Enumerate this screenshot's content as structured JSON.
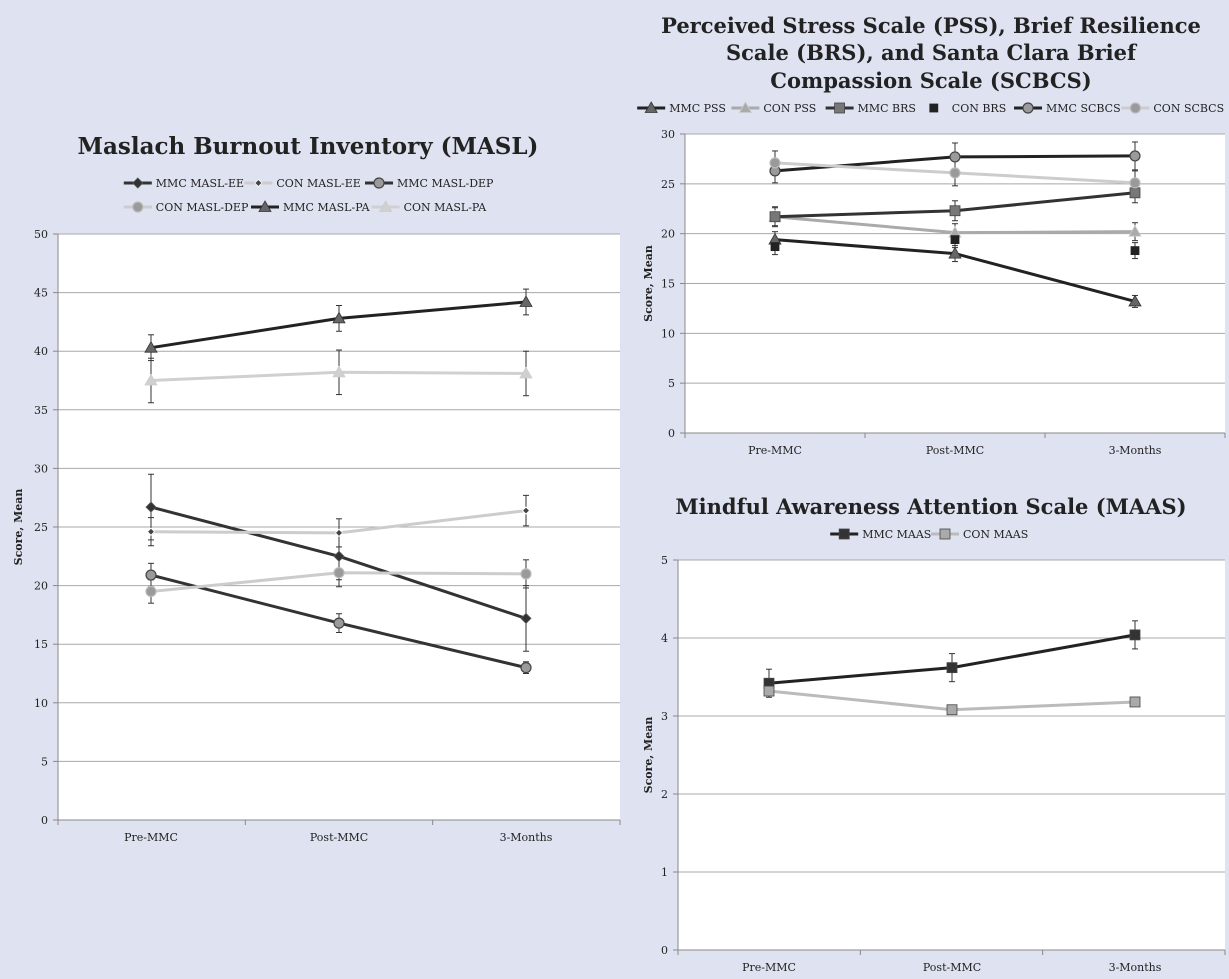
{
  "chart_data": [
    {
      "type": "line",
      "title": "Maslach Burnout Inventory (MASL)",
      "ylabel": "Score, Mean",
      "xlabel": "",
      "categories": [
        "Pre-MMC",
        "Post-MMC",
        "3-Months"
      ],
      "ylim": [
        0,
        50
      ],
      "yticks": [
        0,
        5,
        10,
        15,
        20,
        25,
        30,
        35,
        40,
        45,
        50
      ],
      "grid": true,
      "legend_position": "top",
      "series": [
        {
          "name": "MMC MASL-EE",
          "values": [
            26.7,
            22.5,
            17.2
          ],
          "error": [
            2.8,
            2.0,
            2.8
          ],
          "color": "#333333",
          "marker": "diamond",
          "line": true
        },
        {
          "name": "CON MASL-EE",
          "values": [
            24.6,
            24.5,
            26.4
          ],
          "error": [
            1.2,
            1.2,
            1.3
          ],
          "color": "#cccccc",
          "marker": "diamond-small",
          "line": true
        },
        {
          "name": "MMC MASL-DEP",
          "values": [
            20.9,
            16.8,
            13.0
          ],
          "error": [
            1.0,
            0.8,
            0.5
          ],
          "color": "#333333",
          "marker": "circle",
          "line": true
        },
        {
          "name": "CON MASL-DEP",
          "values": [
            19.5,
            21.1,
            21.0
          ],
          "error": [
            1.0,
            1.2,
            1.2
          ],
          "color": "#cccccc",
          "marker": "circle",
          "line": true
        },
        {
          "name": "MMC MASL-PA",
          "values": [
            40.3,
            42.8,
            44.2
          ],
          "error": [
            1.1,
            1.1,
            1.1
          ],
          "color": "#222222",
          "marker": "triangle",
          "line": true
        },
        {
          "name": "CON MASL-PA",
          "values": [
            37.5,
            38.2,
            38.1
          ],
          "error": [
            1.9,
            1.9,
            1.9
          ],
          "color": "#d0d0d0",
          "marker": "triangle",
          "line": true
        }
      ]
    },
    {
      "type": "line",
      "title": "Perceived Stress Scale (PSS), Brief Resilience Scale (BRS), and Santa Clara Brief Compassion Scale (SCBCS)",
      "title_lines": [
        "Perceived Stress Scale (PSS), Brief Resilience",
        "Scale (BRS), and Santa Clara Brief",
        "Compassion Scale (SCBCS)"
      ],
      "ylabel": "Score, Mean",
      "xlabel": "",
      "categories": [
        "Pre-MMC",
        "Post-MMC",
        "3-Months"
      ],
      "ylim": [
        0,
        30
      ],
      "yticks": [
        0,
        5,
        10,
        15,
        20,
        25,
        30
      ],
      "grid": true,
      "legend_position": "top",
      "series": [
        {
          "name": "MMC PSS",
          "values": [
            19.4,
            18.0,
            13.2
          ],
          "error": [
            0.8,
            0.8,
            0.6
          ],
          "color": "#222222",
          "marker": "triangle",
          "line": true
        },
        {
          "name": "CON PSS",
          "values": [
            21.7,
            20.1,
            20.2
          ],
          "error": [
            0.9,
            0.9,
            0.9
          ],
          "color": "#aaaaaa",
          "marker": "triangle",
          "line": true
        },
        {
          "name": "MMC BRS",
          "values": [
            21.7,
            22.3,
            24.1
          ],
          "error": [
            1.0,
            1.0,
            1.0
          ],
          "color": "#333333",
          "marker": "square",
          "line": true
        },
        {
          "name": "CON BRS",
          "values": [
            18.7,
            19.4,
            18.3
          ],
          "error": [
            0.8,
            0.8,
            0.8
          ],
          "color": "#333333",
          "marker": "square-small",
          "line": false
        },
        {
          "name": "MMC SCBCS",
          "values": [
            26.3,
            27.7,
            27.8
          ],
          "error": [
            1.2,
            1.4,
            1.4
          ],
          "color": "#222222",
          "marker": "circle",
          "line": true
        },
        {
          "name": "CON SCBCS",
          "values": [
            27.1,
            26.1,
            25.1
          ],
          "error": [
            1.2,
            1.3,
            1.2
          ],
          "color": "#cccccc",
          "marker": "circle",
          "line": true
        }
      ]
    },
    {
      "type": "line",
      "title": "Mindful Awareness Attention Scale (MAAS)",
      "ylabel": "Score, Mean",
      "xlabel": "",
      "categories": [
        "Pre-MMC",
        "Post-MMC",
        "3-Months"
      ],
      "ylim": [
        0,
        5
      ],
      "yticks": [
        0,
        1,
        2,
        3,
        4,
        5
      ],
      "grid": true,
      "legend_position": "top",
      "series": [
        {
          "name": "MMC MAAS",
          "values": [
            3.42,
            3.62,
            4.04
          ],
          "error": [
            0.18,
            0.18,
            0.18
          ],
          "color": "#222222",
          "marker": "square",
          "line": true
        },
        {
          "name": "CON MAAS",
          "values": [
            3.32,
            3.08,
            3.18
          ],
          "error": [
            0.05,
            0.05,
            0.05
          ],
          "color": "#bbbbbb",
          "marker": "square",
          "line": true
        }
      ]
    }
  ]
}
